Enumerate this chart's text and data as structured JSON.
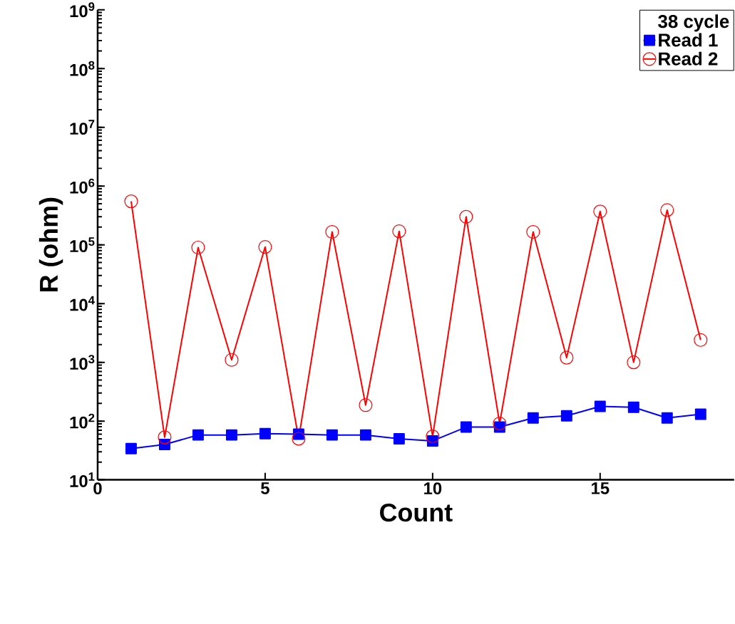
{
  "chart_data": {
    "type": "line",
    "xlabel": "Count",
    "ylabel": "R (ohm)",
    "legend_title": "38 cycle",
    "log": "y",
    "grid": false,
    "legend": "top right",
    "x": [
      1,
      2,
      3,
      4,
      5,
      6,
      7,
      8,
      9,
      10,
      11,
      12,
      13,
      14,
      15,
      16,
      17,
      18
    ],
    "xlim": [
      0,
      19
    ],
    "xticks": [
      0,
      5,
      10,
      15
    ],
    "ylim": [
      10,
      1000000000
    ],
    "yticks": [
      {
        "value": 10,
        "label": "10$^{1}$"
      },
      {
        "value": 100,
        "label": "10$^{2}$"
      },
      {
        "value": 1000,
        "label": "10$^{3}$"
      },
      {
        "value": 10000,
        "label": "10$^{4}$"
      },
      {
        "value": 100000,
        "label": "10$^{5}$"
      },
      {
        "value": 1000000,
        "label": "10$^{6}$"
      },
      {
        "value": 10000000,
        "label": "10$^{7}$"
      },
      {
        "value": 100000000,
        "label": "10$^{8}$"
      },
      {
        "value": 1000000000,
        "label": "10$^{9}$"
      }
    ],
    "series": [
      {
        "name": "Read 1",
        "color": "#0000ff",
        "marker": "square",
        "values": [
          34,
          40,
          58,
          58,
          61,
          60,
          58,
          58,
          50,
          46,
          79,
          79,
          113,
          123,
          178,
          172,
          113,
          131
        ]
      },
      {
        "name": "Read 2",
        "color": "#ff0000",
        "marker": "circle",
        "values": [
          550000,
          53,
          90000,
          1100,
          92000,
          50,
          166000,
          187,
          170000,
          55,
          300000,
          91,
          166000,
          1200,
          370000,
          1000,
          390000,
          2400
        ]
      }
    ]
  }
}
